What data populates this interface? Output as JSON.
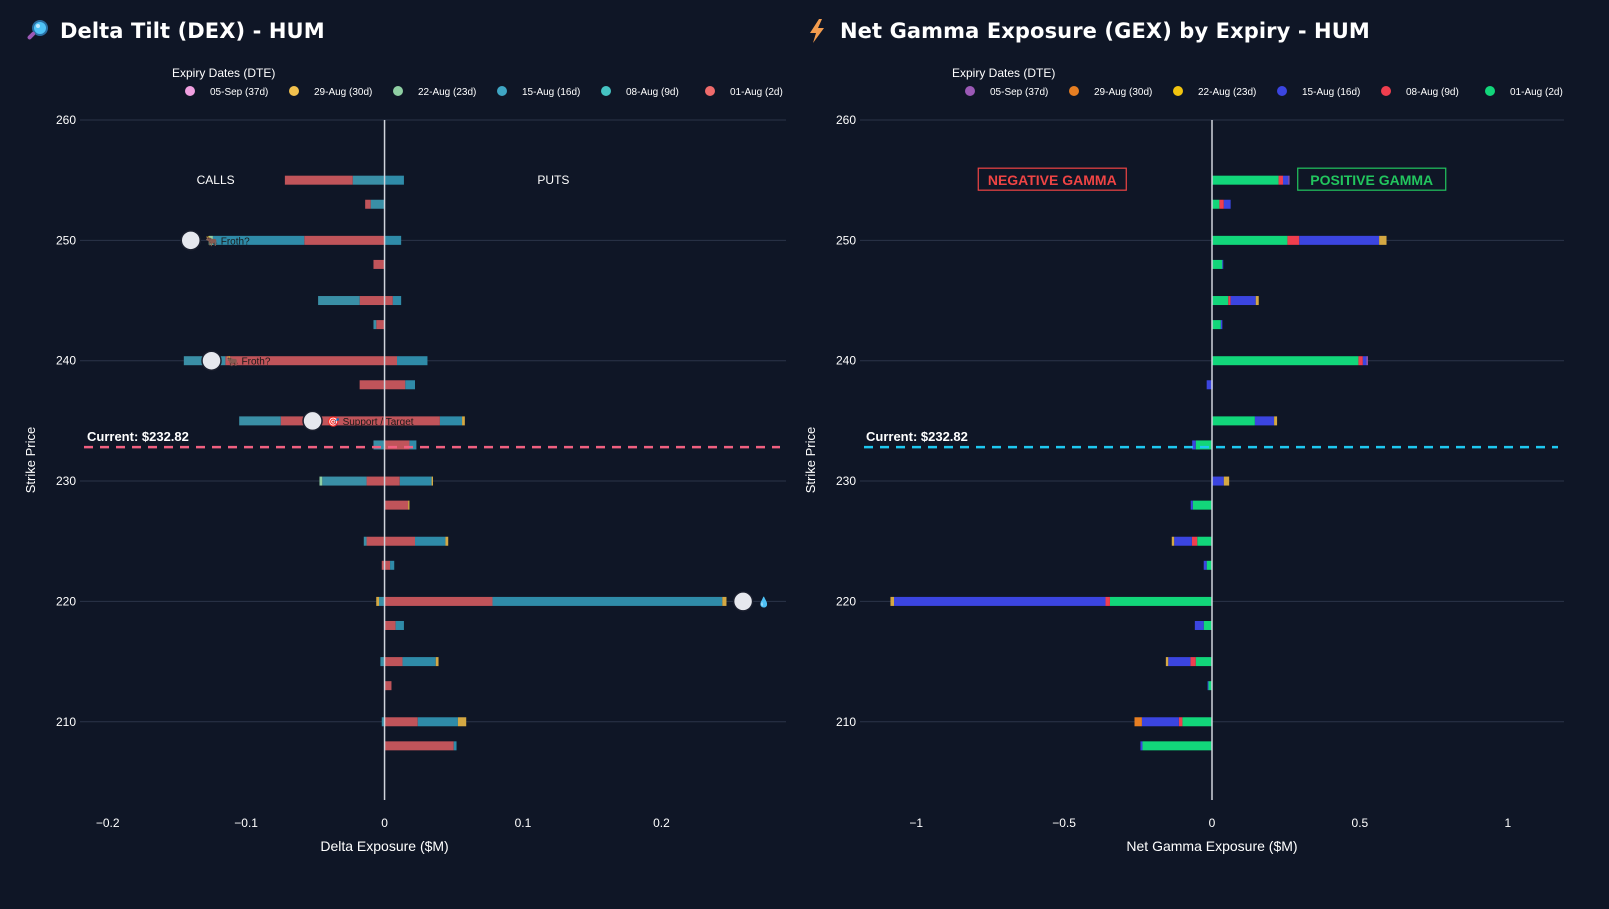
{
  "panels": {
    "dex": {
      "title": "Delta Tilt (DEX) - HUM",
      "icon": "magnifier-icon"
    },
    "gex": {
      "title": "Net Gamma Exposure (GEX) by Expiry - HUM",
      "icon": "lightning-icon"
    }
  },
  "chart_data": [
    {
      "type": "bar",
      "orientation": "horizontal",
      "stacked": true,
      "xlabel": "Delta Exposure ($M)",
      "ylabel": "Strike Price",
      "xlim": [
        -0.22,
        0.29
      ],
      "ylim": [
        203.5,
        260
      ],
      "xticks": [
        -0.2,
        -0.1,
        0,
        0.1,
        0.2
      ],
      "xtick_labels": [
        "−0.2",
        "−0.1",
        "0",
        "0.1",
        "0.2"
      ],
      "yticks": [
        210,
        220,
        230,
        240,
        250,
        260
      ],
      "grid": true,
      "legend": {
        "title": "Expiry Dates (DTE)",
        "placement": "top",
        "entries": [
          {
            "label": "05-Sep (37d)",
            "color": "#f0a0e0"
          },
          {
            "label": "29-Aug (30d)",
            "color": "#f2c14e"
          },
          {
            "label": "22-Aug (23d)",
            "color": "#8fcfa3"
          },
          {
            "label": "15-Aug (16d)",
            "color": "#3fa6c4"
          },
          {
            "label": "08-Aug (9d)",
            "color": "#45c3c3"
          },
          {
            "label": "01-Aug (2d)",
            "color": "#ef6b6b"
          }
        ]
      },
      "annotations": [
        {
          "text": "CALLS",
          "x": -0.122,
          "y": 255
        },
        {
          "text": "PUTS",
          "x": 0.122,
          "y": 255
        }
      ],
      "current_price": {
        "value": 232.82,
        "label": "Current: $232.82",
        "color": "#f06080"
      },
      "markers": [
        {
          "strike": 250,
          "x": -0.14,
          "label": "Froth?",
          "glyph": "🐂"
        },
        {
          "strike": 240,
          "x": -0.125,
          "label": "Froth?",
          "glyph": "🐂"
        },
        {
          "strike": 235,
          "x": -0.052,
          "label": "Support / Target",
          "glyph": "🎯"
        },
        {
          "strike": 220,
          "x": 0.259,
          "label": "",
          "glyph": "💧"
        }
      ],
      "bars": [
        {
          "strike": 255,
          "neg": [
            [
              "#3a8fa6",
              -0.023
            ],
            [
              "#c0545a",
              -0.049
            ]
          ],
          "pos": [
            [
              "#2f8ba8",
              0.014
            ]
          ]
        },
        {
          "strike": 253,
          "neg": [
            [
              "#3a8fa6",
              -0.01
            ],
            [
              "#c0545a",
              -0.004
            ]
          ],
          "pos": []
        },
        {
          "strike": 250,
          "neg": [
            [
              "#c0545a",
              -0.058
            ],
            [
              "#2f8ba8",
              -0.066
            ],
            [
              "#8fcfa3",
              -0.003
            ]
          ],
          "pos": [
            [
              "#2f8ba8",
              0.012
            ]
          ]
        },
        {
          "strike": 248,
          "neg": [
            [
              "#c0545a",
              -0.008
            ]
          ],
          "pos": []
        },
        {
          "strike": 245,
          "neg": [
            [
              "#c0545a",
              -0.018
            ],
            [
              "#3a8fa6",
              -0.03
            ]
          ],
          "pos": [
            [
              "#c0545a",
              0.006
            ],
            [
              "#2f8ba8",
              0.006
            ]
          ]
        },
        {
          "strike": 243,
          "neg": [
            [
              "#c0545a",
              -0.006
            ],
            [
              "#3a8fa6",
              -0.002
            ]
          ],
          "pos": []
        },
        {
          "strike": 240,
          "neg": [
            [
              "#c0545a",
              -0.115
            ],
            [
              "#3a8fa6",
              -0.03
            ]
          ],
          "pos": [
            [
              "#c0545a",
              0.009
            ],
            [
              "#2f8ba8",
              0.022
            ]
          ]
        },
        {
          "strike": 238,
          "neg": [
            [
              "#c0545a",
              -0.018
            ]
          ],
          "pos": [
            [
              "#c0545a",
              0.015
            ],
            [
              "#2f8ba8",
              0.007
            ]
          ]
        },
        {
          "strike": 235,
          "neg": [
            [
              "#c0545a",
              -0.075
            ],
            [
              "#3a8fa6",
              -0.03
            ]
          ],
          "pos": [
            [
              "#c0545a",
              0.04
            ],
            [
              "#2f8ba8",
              0.016
            ],
            [
              "#d4a843",
              0.002
            ]
          ]
        },
        {
          "strike": 233,
          "neg": [
            [
              "#3a8fa6",
              -0.008
            ]
          ],
          "pos": [
            [
              "#c0545a",
              0.018
            ],
            [
              "#2f8ba8",
              0.005
            ]
          ]
        },
        {
          "strike": 230,
          "neg": [
            [
              "#c0545a",
              -0.013
            ],
            [
              "#3a8fa6",
              -0.032
            ],
            [
              "#8fcfa3",
              -0.002
            ]
          ],
          "pos": [
            [
              "#c0545a",
              0.011
            ],
            [
              "#2f8ba8",
              0.023
            ],
            [
              "#d4a843",
              0.001
            ]
          ]
        },
        {
          "strike": 228,
          "neg": [],
          "pos": [
            [
              "#c0545a",
              0.017
            ],
            [
              "#d4a843",
              0.001
            ]
          ]
        },
        {
          "strike": 225,
          "neg": [
            [
              "#c0545a",
              -0.013
            ],
            [
              "#3a8fa6",
              -0.002
            ]
          ],
          "pos": [
            [
              "#c0545a",
              0.022
            ],
            [
              "#2f8ba8",
              0.022
            ],
            [
              "#d4a843",
              0.002
            ]
          ]
        },
        {
          "strike": 223,
          "neg": [
            [
              "#c0545a",
              -0.002
            ]
          ],
          "pos": [
            [
              "#c0545a",
              0.004
            ],
            [
              "#2f8ba8",
              0.003
            ]
          ]
        },
        {
          "strike": 220,
          "neg": [
            [
              "#3a8fa6",
              -0.004
            ],
            [
              "#d4a843",
              -0.002
            ]
          ],
          "pos": [
            [
              "#c0545a",
              0.078
            ],
            [
              "#2f8ba8",
              0.166
            ],
            [
              "#d4a843",
              0.003
            ]
          ]
        },
        {
          "strike": 218,
          "neg": [],
          "pos": [
            [
              "#c0545a",
              0.008
            ],
            [
              "#2f8ba8",
              0.006
            ]
          ]
        },
        {
          "strike": 215,
          "neg": [
            [
              "#3a8fa6",
              -0.003
            ]
          ],
          "pos": [
            [
              "#c0545a",
              0.013
            ],
            [
              "#2f8ba8",
              0.024
            ],
            [
              "#d4a843",
              0.002
            ]
          ]
        },
        {
          "strike": 213,
          "neg": [],
          "pos": [
            [
              "#c0545a",
              0.005
            ]
          ]
        },
        {
          "strike": 210,
          "neg": [
            [
              "#3a8fa6",
              -0.002
            ]
          ],
          "pos": [
            [
              "#c0545a",
              0.024
            ],
            [
              "#2f8ba8",
              0.029
            ],
            [
              "#d4a843",
              0.006
            ]
          ]
        },
        {
          "strike": 208,
          "neg": [],
          "pos": [
            [
              "#c0545a",
              0.05
            ],
            [
              "#2f8ba8",
              0.002
            ]
          ]
        }
      ]
    },
    {
      "type": "bar",
      "orientation": "horizontal",
      "stacked": true,
      "xlabel": "Net Gamma Exposure ($M)",
      "ylabel": "Strike Price",
      "xlim": [
        -1.19,
        1.19
      ],
      "ylim": [
        203.5,
        260
      ],
      "xticks": [
        -1,
        -0.5,
        0,
        0.5,
        1
      ],
      "xtick_labels": [
        "−1",
        "−0.5",
        "0",
        "0.5",
        "1"
      ],
      "yticks": [
        210,
        220,
        230,
        240,
        250,
        260
      ],
      "grid": true,
      "legend": {
        "title": "Expiry Dates (DTE)",
        "placement": "top",
        "entries": [
          {
            "label": "05-Sep (37d)",
            "color": "#9b59b6"
          },
          {
            "label": "29-Aug (30d)",
            "color": "#e67e22"
          },
          {
            "label": "22-Aug (23d)",
            "color": "#f1c40f"
          },
          {
            "label": "15-Aug (16d)",
            "color": "#3b45e0"
          },
          {
            "label": "08-Aug (9d)",
            "color": "#f03e4e"
          },
          {
            "label": "01-Aug (2d)",
            "color": "#12d67a"
          }
        ]
      },
      "annotations": [
        {
          "text": "NEGATIVE GAMMA",
          "x": -0.54,
          "y": 255,
          "color": "#ef4444",
          "boxed": true
        },
        {
          "text": "POSITIVE GAMMA",
          "x": 0.54,
          "y": 255,
          "color": "#22c55e",
          "boxed": true
        }
      ],
      "current_price": {
        "value": 232.82,
        "label": "Current: $232.82",
        "color": "#1ec8f0"
      },
      "bars": [
        {
          "strike": 255,
          "neg": [],
          "pos": [
            [
              "#12d67a",
              0.225
            ],
            [
              "#f03e4e",
              0.015
            ],
            [
              "#3b45e0",
              0.018
            ],
            [
              "#9b59b6",
              0.004
            ]
          ]
        },
        {
          "strike": 253,
          "neg": [],
          "pos": [
            [
              "#12d67a",
              0.025
            ],
            [
              "#f03e4e",
              0.015
            ],
            [
              "#3b45e0",
              0.023
            ]
          ]
        },
        {
          "strike": 250,
          "neg": [],
          "pos": [
            [
              "#12d67a",
              0.255
            ],
            [
              "#f03e4e",
              0.04
            ],
            [
              "#3b45e0",
              0.27
            ],
            [
              "#d4a843",
              0.025
            ]
          ]
        },
        {
          "strike": 248,
          "neg": [],
          "pos": [
            [
              "#12d67a",
              0.035
            ],
            [
              "#3b45e0",
              0.003
            ]
          ]
        },
        {
          "strike": 245,
          "neg": [],
          "pos": [
            [
              "#12d67a",
              0.055
            ],
            [
              "#f03e4e",
              0.008
            ],
            [
              "#3b45e0",
              0.085
            ],
            [
              "#d4a843",
              0.01
            ]
          ]
        },
        {
          "strike": 243,
          "neg": [],
          "pos": [
            [
              "#12d67a",
              0.03
            ],
            [
              "#3b45e0",
              0.005
            ]
          ]
        },
        {
          "strike": 240,
          "neg": [],
          "pos": [
            [
              "#12d67a",
              0.495
            ],
            [
              "#f03e4e",
              0.015
            ],
            [
              "#3b45e0",
              0.012
            ],
            [
              "#9b59b6",
              0.005
            ]
          ]
        },
        {
          "strike": 238,
          "neg": [
            [
              "#3b45e0",
              -0.018
            ]
          ],
          "pos": [
            [
              "#3b45e0",
              0.002
            ]
          ]
        },
        {
          "strike": 235,
          "neg": [],
          "pos": [
            [
              "#12d67a",
              0.145
            ],
            [
              "#3b45e0",
              0.065
            ],
            [
              "#d4a843",
              0.01
            ]
          ]
        },
        {
          "strike": 233,
          "neg": [
            [
              "#12d67a",
              -0.055
            ],
            [
              "#3b45e0",
              -0.012
            ]
          ],
          "pos": []
        },
        {
          "strike": 230,
          "neg": [],
          "pos": [
            [
              "#3b45e0",
              0.04
            ],
            [
              "#d4a843",
              0.018
            ]
          ]
        },
        {
          "strike": 228,
          "neg": [
            [
              "#12d67a",
              -0.065
            ],
            [
              "#3b45e0",
              -0.007
            ]
          ],
          "pos": []
        },
        {
          "strike": 225,
          "neg": [
            [
              "#12d67a",
              -0.05
            ],
            [
              "#f03e4e",
              -0.018
            ],
            [
              "#3b45e0",
              -0.06
            ],
            [
              "#d4a843",
              -0.008
            ]
          ],
          "pos": []
        },
        {
          "strike": 223,
          "neg": [
            [
              "#12d67a",
              -0.018
            ],
            [
              "#3b45e0",
              -0.01
            ]
          ],
          "pos": []
        },
        {
          "strike": 220,
          "neg": [
            [
              "#12d67a",
              -0.345
            ],
            [
              "#f03e4e",
              -0.015
            ],
            [
              "#3b45e0",
              -0.715
            ],
            [
              "#d4a843",
              -0.012
            ]
          ],
          "pos": []
        },
        {
          "strike": 218,
          "neg": [
            [
              "#12d67a",
              -0.028
            ],
            [
              "#3b45e0",
              -0.03
            ]
          ],
          "pos": []
        },
        {
          "strike": 215,
          "neg": [
            [
              "#12d67a",
              -0.055
            ],
            [
              "#f03e4e",
              -0.018
            ],
            [
              "#3b45e0",
              -0.075
            ],
            [
              "#d4a843",
              -0.008
            ]
          ],
          "pos": []
        },
        {
          "strike": 213,
          "neg": [
            [
              "#12d67a",
              -0.012
            ],
            [
              "#3b45e0",
              -0.003
            ]
          ],
          "pos": []
        },
        {
          "strike": 210,
          "neg": [
            [
              "#12d67a",
              -0.1
            ],
            [
              "#f03e4e",
              -0.012
            ],
            [
              "#3b45e0",
              -0.125
            ],
            [
              "#e67e22",
              -0.025
            ]
          ],
          "pos": []
        },
        {
          "strike": 208,
          "neg": [
            [
              "#12d67a",
              -0.235
            ],
            [
              "#3b45e0",
              -0.007
            ]
          ],
          "pos": []
        }
      ]
    }
  ]
}
